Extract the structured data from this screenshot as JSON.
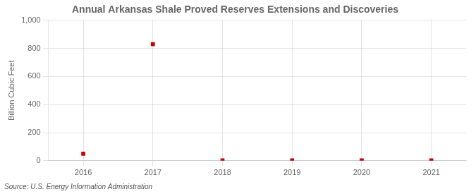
{
  "chart_data": {
    "type": "scatter",
    "title": "Annual Arkansas Shale Proved Reserves Extensions and Discoveries",
    "ylabel": "Billion Cubic Feet",
    "source": "Source: U.S. Energy Information Administration",
    "x": [
      2016,
      2017,
      2018,
      2019,
      2020,
      2021
    ],
    "values": [
      50,
      830,
      2,
      2,
      2,
      2
    ],
    "color": "#cc0000",
    "marker": "square",
    "xlim": [
      2015.5,
      2021.5
    ],
    "xticks": [
      2016,
      2017,
      2018,
      2019,
      2020,
      2021
    ],
    "ylim": [
      0,
      1000
    ],
    "yticks": [
      0,
      200,
      400,
      600,
      800,
      {
        "value": 1000,
        "label": "1,000"
      }
    ],
    "grid": true
  }
}
